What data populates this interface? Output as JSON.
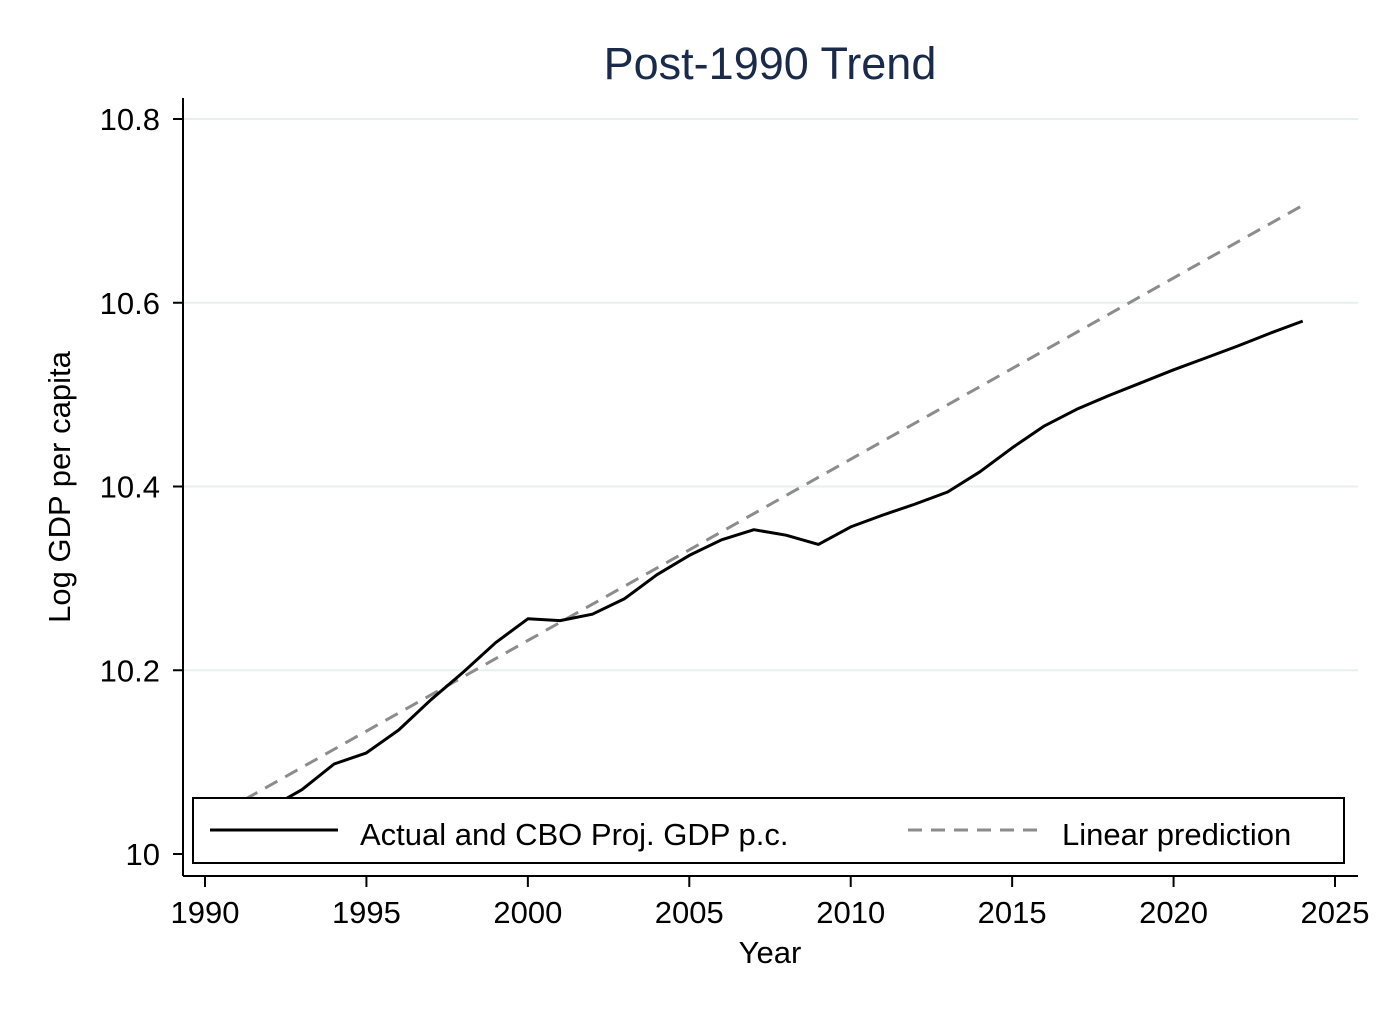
{
  "chart_data": {
    "type": "line",
    "title": "Post-1990 Trend",
    "xlabel": "Year",
    "ylabel": "Log GDP per capita",
    "xlim": [
      1990,
      2025
    ],
    "ylim": [
      10,
      10.8
    ],
    "x_ticks": [
      1990,
      1995,
      2000,
      2005,
      2010,
      2015,
      2020,
      2025
    ],
    "x_tick_labels": [
      "1990",
      "1995",
      "2000",
      "2005",
      "2010",
      "2015",
      "2020",
      "2025"
    ],
    "y_ticks": [
      10,
      10.2,
      10.4,
      10.6,
      10.8
    ],
    "y_tick_labels": [
      "10",
      "10.2",
      "10.4",
      "10.6",
      "10.8"
    ],
    "grid": "horizontal",
    "legend_position": "bottom-inside",
    "series": [
      {
        "name": "Actual and CBO Proj. GDP p.c.",
        "style": "solid",
        "color": "#000000",
        "x": [
          1990,
          1991,
          1992,
          1993,
          1994,
          1995,
          1996,
          1997,
          1998,
          1999,
          2000,
          2001,
          2002,
          2003,
          2004,
          2005,
          2006,
          2007,
          2008,
          2009,
          2010,
          2011,
          2012,
          2013,
          2014,
          2015,
          2016,
          2017,
          2018,
          2019,
          2020,
          2021,
          2022,
          2023,
          2024
        ],
        "values": [
          10.03,
          10.02,
          10.05,
          10.07,
          10.098,
          10.11,
          10.135,
          10.168,
          10.198,
          10.23,
          10.256,
          10.254,
          10.261,
          10.278,
          10.304,
          10.325,
          10.342,
          10.353,
          10.347,
          10.337,
          10.356,
          10.369,
          10.381,
          10.394,
          10.416,
          10.442,
          10.466,
          10.484,
          10.499,
          10.513,
          10.527,
          10.54,
          10.553,
          10.567,
          10.58
        ]
      },
      {
        "name": "Linear prediction",
        "style": "dashed",
        "color": "#8c8c8c",
        "x": [
          1990,
          2024
        ],
        "values": [
          10.035,
          10.706
        ]
      }
    ]
  },
  "colors": {
    "title": "#1a2a4a",
    "grid": "#e8efef",
    "axis": "#000000",
    "actual_line": "#000000",
    "trend_line": "#8c8c8c"
  }
}
